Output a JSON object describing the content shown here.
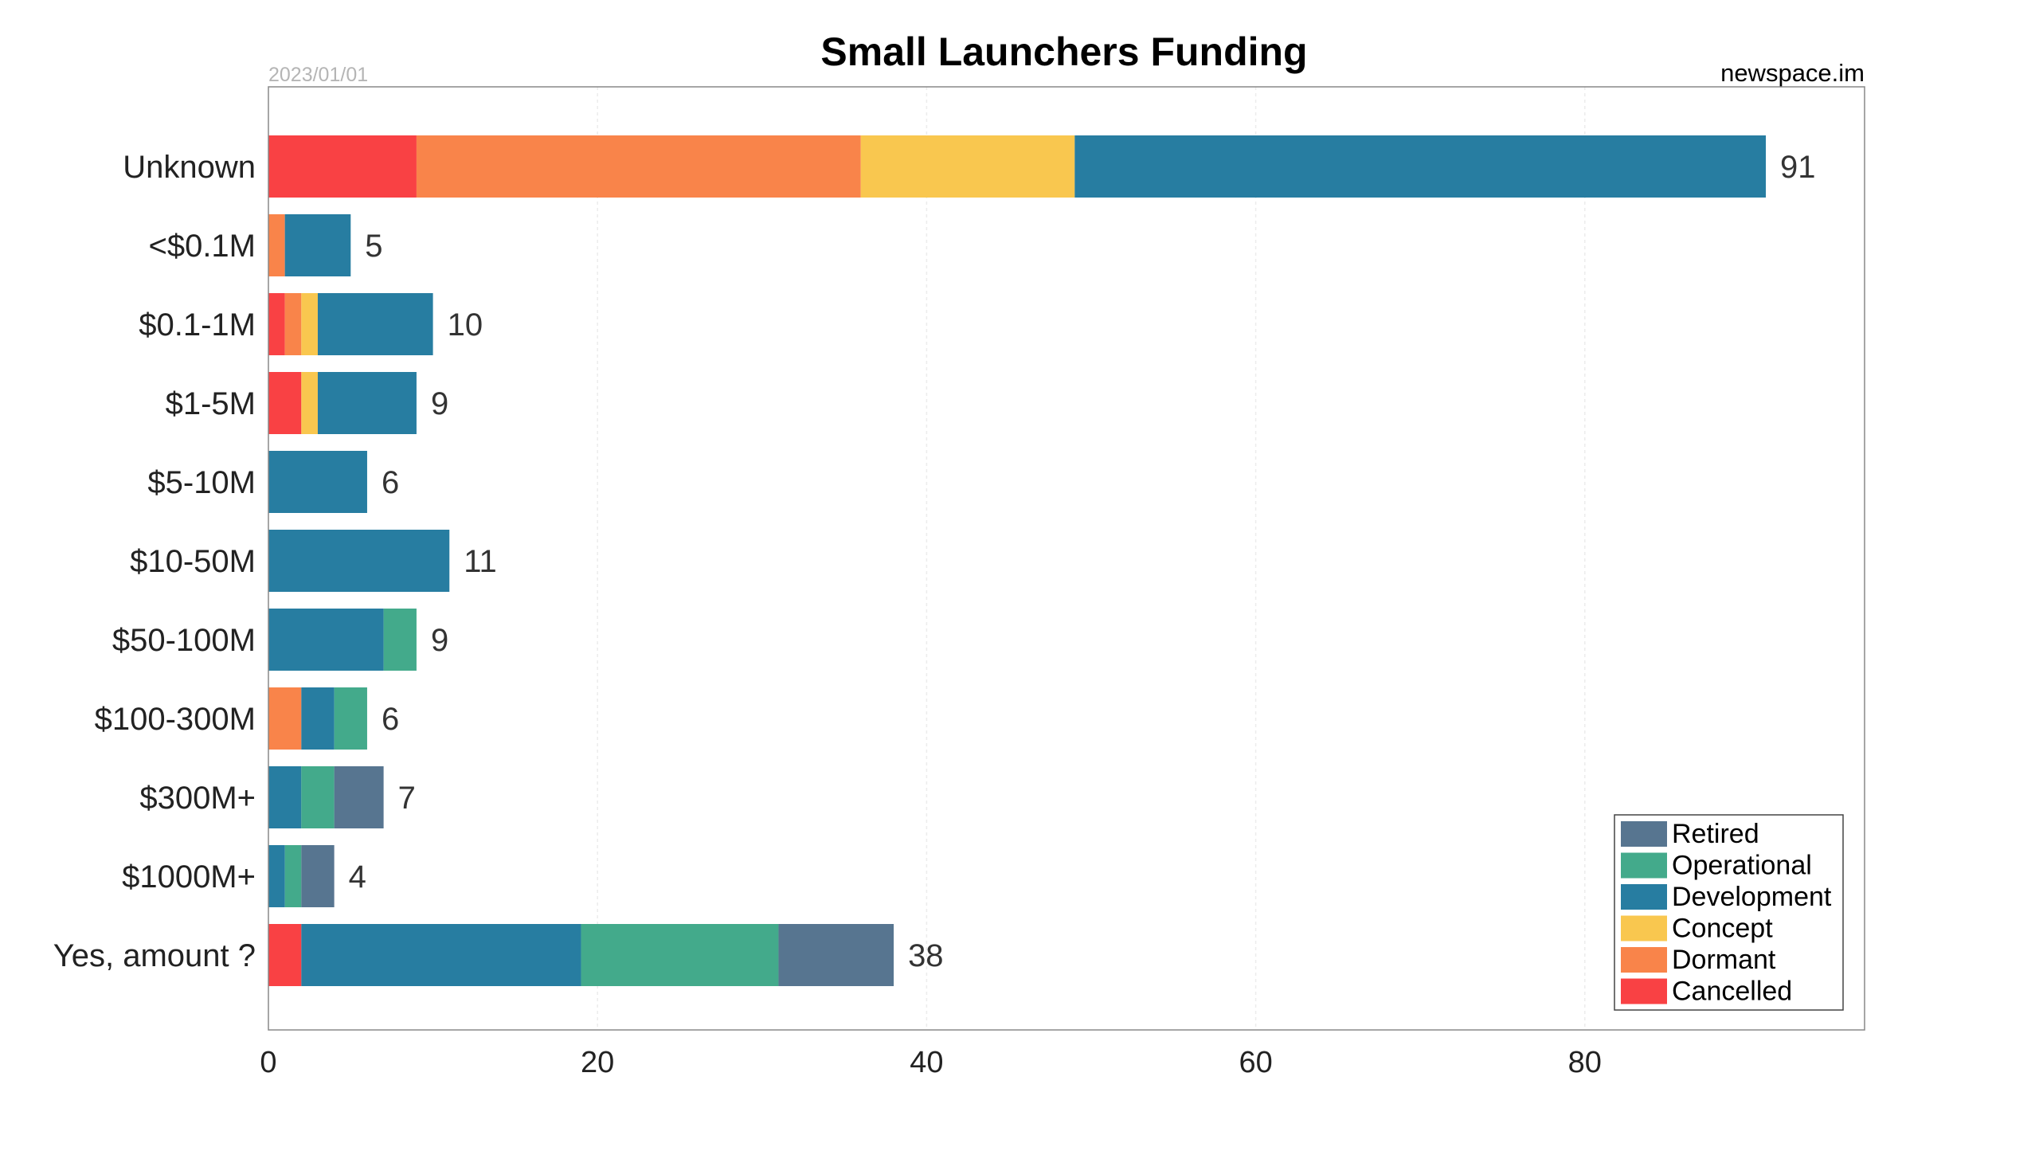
{
  "chart_data": {
    "type": "bar",
    "orientation": "horizontal",
    "stacked": true,
    "title": "Small Launchers Funding",
    "date_label": "2023/01/01",
    "source_label": "newspace.im",
    "xlabel": "",
    "ylabel": "",
    "xlim": [
      0,
      97
    ],
    "x_ticks": [
      0,
      20,
      40,
      60,
      80
    ],
    "grid": true,
    "legend_position": "bottom-right",
    "categories": [
      "Unknown",
      "<$0.1M",
      "$0.1-1M",
      "$1-5M",
      "$5-10M",
      "$10-50M",
      "$50-100M",
      "$100-300M",
      "$300M+",
      "$1000M+",
      "Yes, amount ?"
    ],
    "series": [
      {
        "name": "Cancelled",
        "color": "#f94144",
        "values": [
          9,
          0,
          1,
          2,
          0,
          0,
          0,
          0,
          0,
          0,
          2
        ]
      },
      {
        "name": "Dormant",
        "color": "#f9844a",
        "values": [
          27,
          1,
          1,
          0,
          0,
          0,
          0,
          2,
          0,
          0,
          0
        ]
      },
      {
        "name": "Concept",
        "color": "#f9c74f",
        "values": [
          13,
          0,
          1,
          1,
          0,
          0,
          0,
          0,
          0,
          0,
          0
        ]
      },
      {
        "name": "Development",
        "color": "#277da1",
        "values": [
          42,
          4,
          7,
          6,
          6,
          11,
          7,
          2,
          2,
          1,
          17
        ]
      },
      {
        "name": "Operational",
        "color": "#43aa8b",
        "values": [
          0,
          0,
          0,
          0,
          0,
          0,
          2,
          2,
          2,
          1,
          12
        ]
      },
      {
        "name": "Retired",
        "color": "#577590",
        "values": [
          0,
          0,
          0,
          0,
          0,
          0,
          0,
          0,
          3,
          2,
          7
        ]
      }
    ],
    "totals": [
      91,
      5,
      10,
      9,
      6,
      11,
      9,
      6,
      7,
      4,
      38
    ],
    "legend_order": [
      "Retired",
      "Operational",
      "Development",
      "Concept",
      "Dormant",
      "Cancelled"
    ]
  }
}
